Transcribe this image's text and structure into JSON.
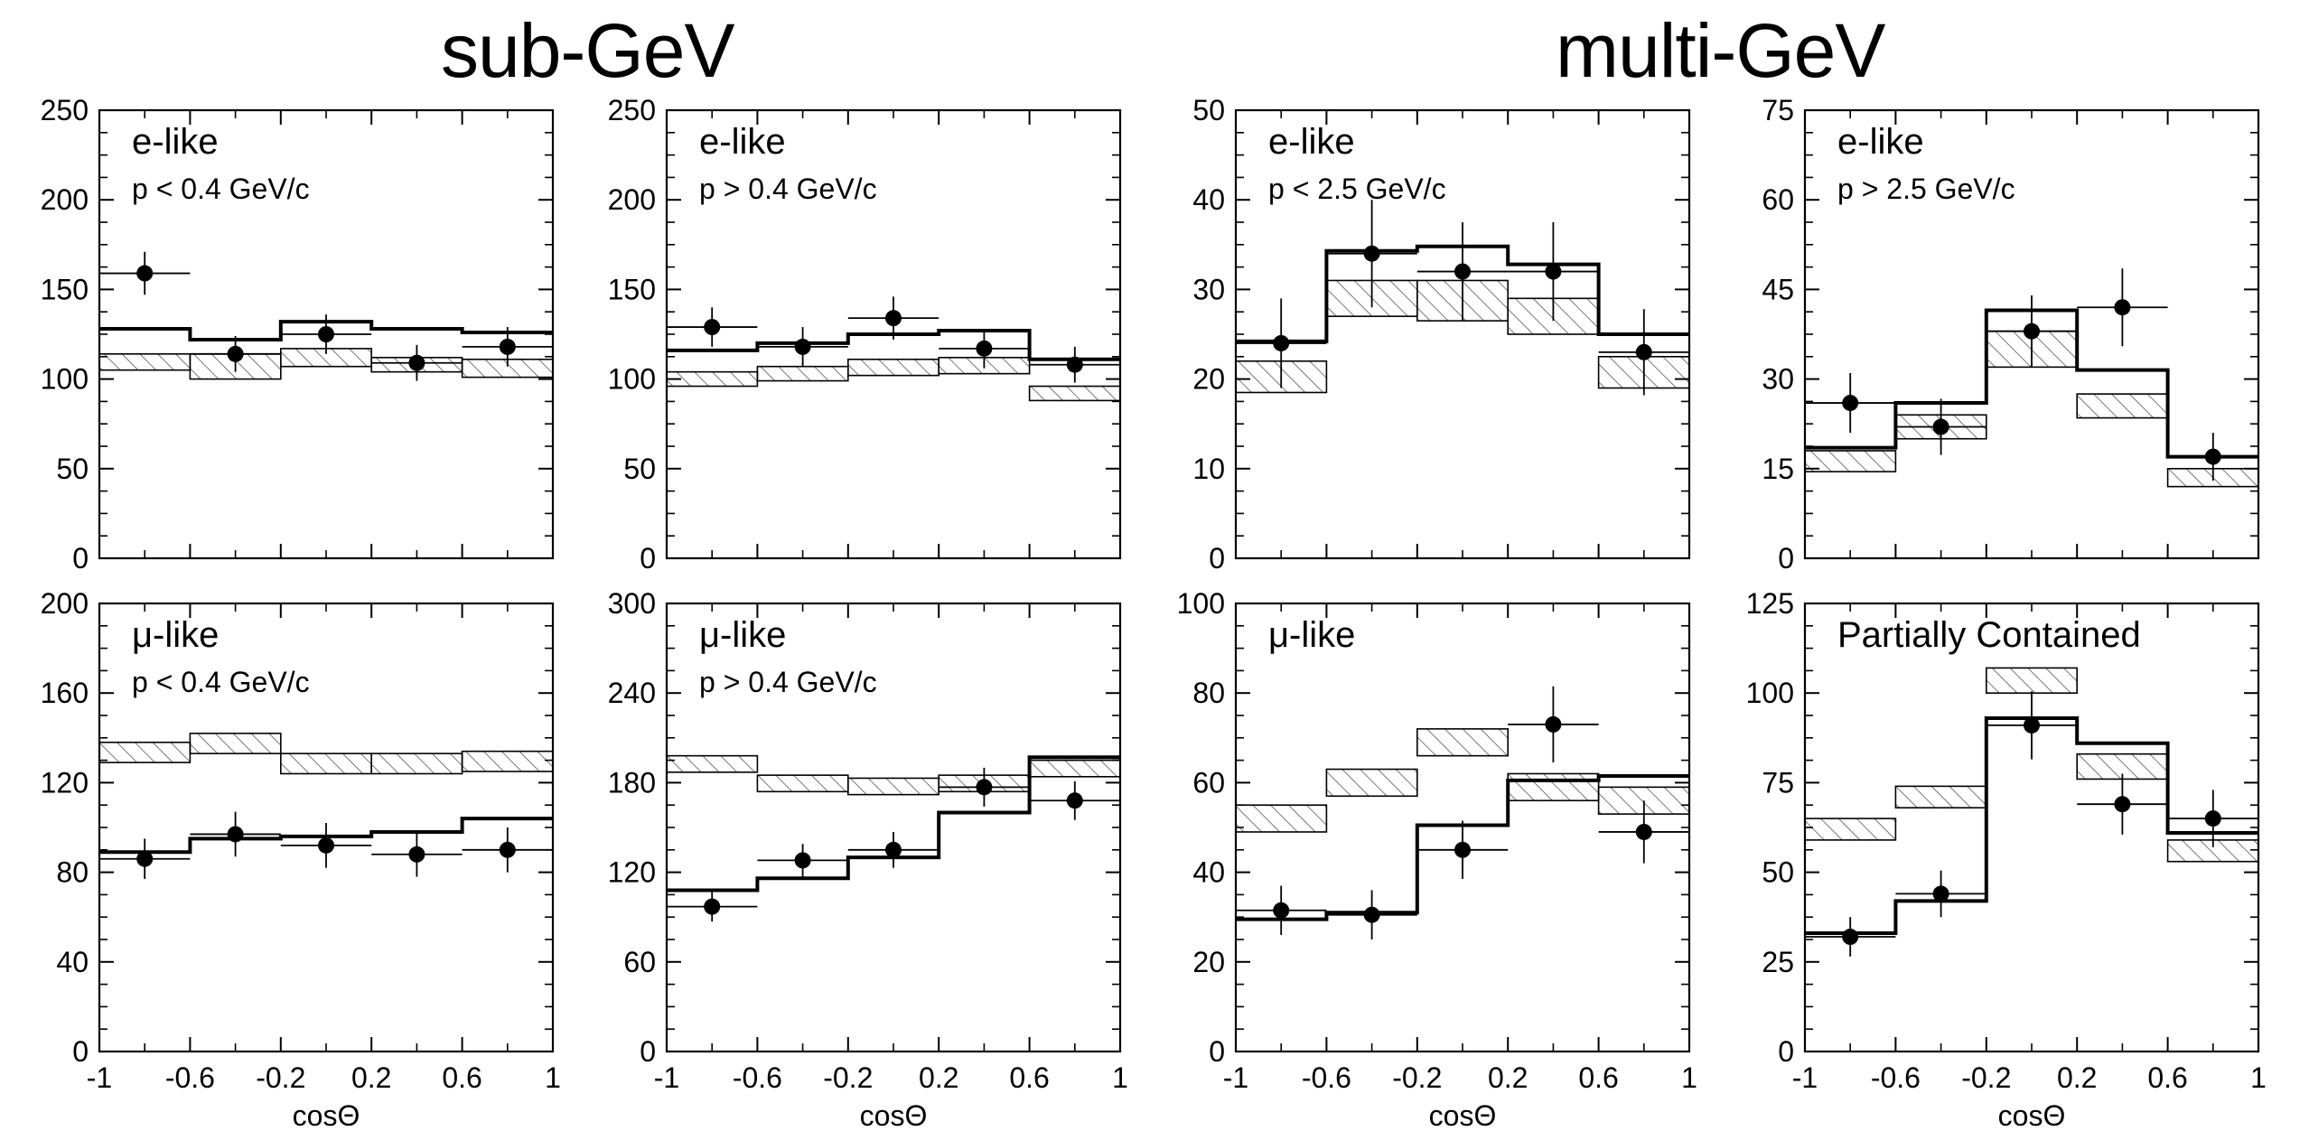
{
  "figure": {
    "group_titles": [
      "sub-GeV",
      "multi-GeV"
    ],
    "colors": {
      "line": "#000000",
      "hatch": "#555555",
      "background": "#ffffff"
    }
  },
  "chart_data": [
    {
      "type": "histogram",
      "label": "e-like",
      "sublabel": "p < 0.4 GeV/c",
      "xlabel": "cosΘ",
      "xlim": [
        -1,
        1
      ],
      "ylim": [
        0,
        250
      ],
      "yticks": [
        0,
        50,
        100,
        150,
        200,
        250
      ],
      "ytick_labels": [
        "0",
        "50",
        "100",
        "150",
        "200",
        "250"
      ],
      "bin_edges": [
        -1,
        -0.6,
        -0.2,
        0.2,
        0.6,
        1
      ],
      "mc_best_fit": [
        128,
        122,
        132,
        128,
        126
      ],
      "mc_no_osc_band": [
        [
          105,
          114
        ],
        [
          100,
          114
        ],
        [
          107,
          117
        ],
        [
          104,
          112
        ],
        [
          101,
          111
        ]
      ],
      "data": {
        "x": [
          -0.8,
          -0.4,
          0.0,
          0.4,
          0.8
        ],
        "y": [
          159,
          114,
          125,
          109,
          118
        ],
        "yerr": [
          12,
          10,
          11,
          10,
          11
        ]
      }
    },
    {
      "type": "histogram",
      "label": "e-like",
      "sublabel": "p > 0.4 GeV/c",
      "xlabel": "cosΘ",
      "xlim": [
        -1,
        1
      ],
      "ylim": [
        0,
        250
      ],
      "yticks": [
        0,
        50,
        100,
        150,
        200,
        250
      ],
      "ytick_labels": [
        "0",
        "50",
        "100",
        "150",
        "200",
        "250"
      ],
      "bin_edges": [
        -1,
        -0.6,
        -0.2,
        0.2,
        0.6,
        1
      ],
      "mc_best_fit": [
        116,
        120,
        125,
        127,
        111
      ],
      "mc_no_osc_band": [
        [
          96,
          104
        ],
        [
          99,
          107
        ],
        [
          102,
          111
        ],
        [
          103,
          112
        ],
        [
          88,
          96
        ]
      ],
      "data": {
        "x": [
          -0.8,
          -0.4,
          0.0,
          0.4,
          0.8
        ],
        "y": [
          129,
          118,
          134,
          117,
          108
        ],
        "yerr": [
          11,
          11,
          12,
          11,
          10
        ]
      }
    },
    {
      "type": "histogram",
      "label": "e-like",
      "sublabel": "p < 2.5 GeV/c",
      "xlabel": "cosΘ",
      "xlim": [
        -1,
        1
      ],
      "ylim": [
        0,
        50
      ],
      "yticks": [
        0,
        10,
        20,
        30,
        40,
        50
      ],
      "ytick_labels": [
        "0",
        "10",
        "20",
        "30",
        "40",
        "50"
      ],
      "bin_edges": [
        -1,
        -0.6,
        -0.2,
        0.2,
        0.6,
        1
      ],
      "mc_best_fit": [
        24.2,
        34.3,
        34.8,
        32.8,
        25.0
      ],
      "mc_no_osc_band": [
        [
          18.5,
          22.0
        ],
        [
          27.0,
          31.0
        ],
        [
          26.5,
          31.0
        ],
        [
          25.0,
          29.0
        ],
        [
          19.0,
          22.5
        ]
      ],
      "data": {
        "x": [
          -0.8,
          -0.4,
          0.0,
          0.4,
          0.8
        ],
        "y": [
          24,
          34,
          32,
          32,
          23
        ],
        "yerr": [
          5,
          6,
          5.5,
          5.5,
          4.8
        ]
      }
    },
    {
      "type": "histogram",
      "label": "e-like",
      "sublabel": "p > 2.5 GeV/c",
      "xlabel": "cosΘ",
      "xlim": [
        -1,
        1
      ],
      "ylim": [
        0,
        75
      ],
      "yticks": [
        0,
        15,
        30,
        45,
        60,
        75
      ],
      "ytick_labels": [
        "0",
        "15",
        "30",
        "45",
        "60",
        "75"
      ],
      "bin_edges": [
        -1,
        -0.6,
        -0.2,
        0.2,
        0.6,
        1
      ],
      "mc_best_fit": [
        18.5,
        26,
        41.5,
        31.5,
        17
      ],
      "mc_no_osc_band": [
        [
          14.5,
          18
        ],
        [
          20,
          24
        ],
        [
          32,
          38
        ],
        [
          23.5,
          27.5
        ],
        [
          12,
          15
        ]
      ],
      "data": {
        "x": [
          -0.8,
          -0.4,
          0.0,
          0.4,
          0.8
        ],
        "y": [
          26,
          22,
          38,
          42,
          17
        ],
        "yerr": [
          5,
          4.7,
          6,
          6.5,
          4
        ]
      }
    },
    {
      "type": "histogram",
      "label": "μ-like",
      "sublabel": "p < 0.4 GeV/c",
      "xlabel": "cosΘ",
      "xlim": [
        -1,
        1
      ],
      "ylim": [
        0,
        200
      ],
      "yticks": [
        0,
        40,
        80,
        120,
        160,
        200
      ],
      "ytick_labels": [
        "0",
        "40",
        "80",
        "120",
        "160",
        "200"
      ],
      "bin_edges": [
        -1,
        -0.6,
        -0.2,
        0.2,
        0.6,
        1
      ],
      "mc_best_fit": [
        89,
        95,
        96,
        98,
        104
      ],
      "mc_no_osc_band": [
        [
          129,
          138
        ],
        [
          133,
          142
        ],
        [
          124,
          133
        ],
        [
          124,
          133
        ],
        [
          125,
          134
        ]
      ],
      "data": {
        "x": [
          -0.8,
          -0.4,
          0.0,
          0.4,
          0.8
        ],
        "y": [
          86,
          97,
          92,
          88,
          90
        ],
        "yerr": [
          9,
          10,
          10,
          10,
          10
        ]
      }
    },
    {
      "type": "histogram",
      "label": "μ-like",
      "sublabel": "p > 0.4 GeV/c",
      "xlabel": "cosΘ",
      "xlim": [
        -1,
        1
      ],
      "ylim": [
        0,
        300
      ],
      "yticks": [
        0,
        60,
        120,
        180,
        240,
        300
      ],
      "ytick_labels": [
        "0",
        "60",
        "120",
        "180",
        "240",
        "300"
      ],
      "bin_edges": [
        -1,
        -0.6,
        -0.2,
        0.2,
        0.6,
        1
      ],
      "mc_best_fit": [
        108,
        116,
        130,
        160,
        197
      ],
      "mc_no_osc_band": [
        [
          187,
          198
        ],
        [
          174,
          185
        ],
        [
          172,
          183
        ],
        [
          174,
          185
        ],
        [
          184,
          195
        ]
      ],
      "data": {
        "x": [
          -0.8,
          -0.4,
          0.0,
          0.4,
          0.8
        ],
        "y": [
          97,
          128,
          135,
          177,
          168
        ],
        "yerr": [
          10,
          11,
          12,
          13,
          13
        ]
      }
    },
    {
      "type": "histogram",
      "label": "μ-like",
      "sublabel": "",
      "xlabel": "cosΘ",
      "xlim": [
        -1,
        1
      ],
      "ylim": [
        0,
        100
      ],
      "yticks": [
        0,
        20,
        40,
        60,
        80,
        100
      ],
      "ytick_labels": [
        "0",
        "20",
        "40",
        "60",
        "80",
        "100"
      ],
      "bin_edges": [
        -1,
        -0.6,
        -0.2,
        0.2,
        0.6,
        1
      ],
      "mc_best_fit": [
        29.5,
        31,
        50.5,
        60.5,
        61.5
      ],
      "mc_no_osc_band": [
        [
          49,
          55
        ],
        [
          57,
          63
        ],
        [
          66,
          72
        ],
        [
          56,
          62
        ],
        [
          53,
          59
        ]
      ],
      "data": {
        "x": [
          -0.8,
          -0.4,
          0.0,
          0.4,
          0.8
        ],
        "y": [
          31.5,
          30.5,
          45,
          73,
          49
        ],
        "yerr": [
          5.5,
          5.5,
          6.5,
          8.5,
          7
        ]
      }
    },
    {
      "type": "histogram",
      "label": "Partially Contained",
      "sublabel": "",
      "xlabel": "cosΘ",
      "xlim": [
        -1,
        1
      ],
      "ylim": [
        0,
        125
      ],
      "yticks": [
        0,
        25,
        50,
        75,
        100,
        125
      ],
      "ytick_labels": [
        "0",
        "25",
        "50",
        "75",
        "100",
        "125"
      ],
      "bin_edges": [
        -1,
        -0.6,
        -0.2,
        0.2,
        0.6,
        1
      ],
      "mc_best_fit": [
        33,
        42,
        93,
        86,
        61
      ],
      "mc_no_osc_band": [
        [
          59,
          65
        ],
        [
          68,
          74
        ],
        [
          100,
          107
        ],
        [
          76,
          83
        ],
        [
          53,
          59
        ]
      ],
      "data": {
        "x": [
          -0.8,
          -0.4,
          0.0,
          0.4,
          0.8
        ],
        "y": [
          32,
          44,
          91,
          69,
          65
        ],
        "yerr": [
          5.5,
          6.5,
          9.5,
          8.5,
          8
        ]
      }
    }
  ]
}
